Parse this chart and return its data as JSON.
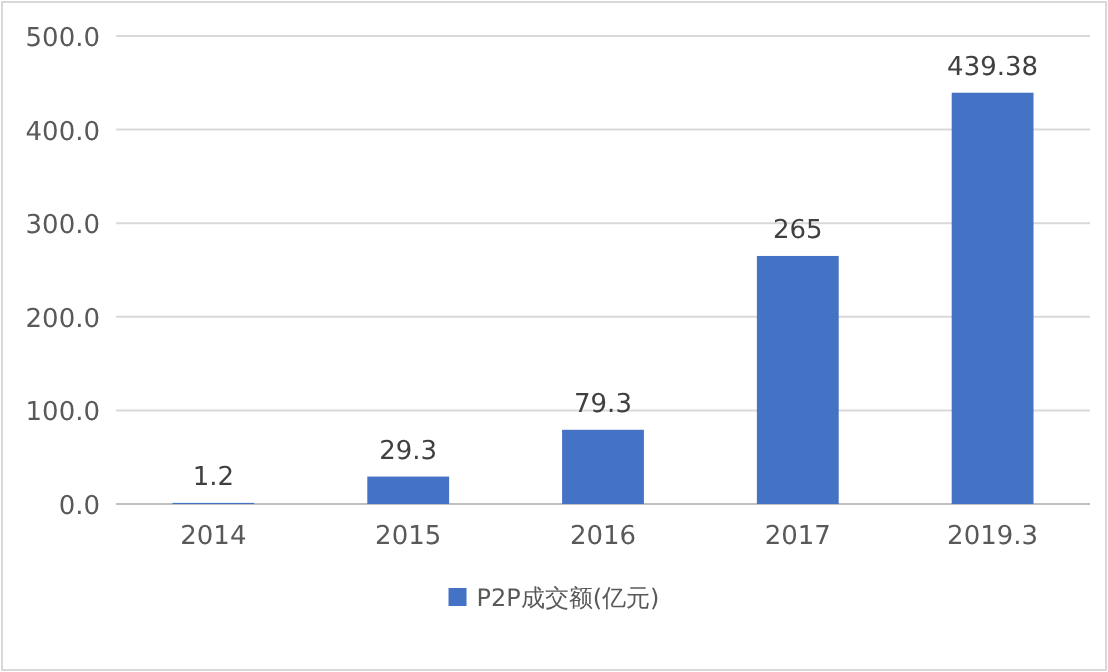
{
  "chart_data": {
    "type": "bar",
    "categories": [
      "2014",
      "2015",
      "2016",
      "2017",
      "2019.3"
    ],
    "series": [
      {
        "name": "P2P成交额(亿元)",
        "color": "#4472c4",
        "values": [
          1.2,
          29.3,
          79.3,
          265,
          439.38
        ]
      }
    ],
    "ylim": [
      0,
      500
    ],
    "yticks": [
      {
        "value": 0,
        "label": "0.0"
      },
      {
        "value": 100,
        "label": "100.0"
      },
      {
        "value": 200,
        "label": "200.0"
      },
      {
        "value": 300,
        "label": "300.0"
      },
      {
        "value": 400,
        "label": "400.0"
      },
      {
        "value": 500,
        "label": "500.0"
      }
    ],
    "grid": "y",
    "legend": "bottom",
    "data_labels": true
  }
}
